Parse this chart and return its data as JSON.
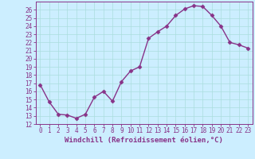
{
  "x": [
    0,
    1,
    2,
    3,
    4,
    5,
    6,
    7,
    8,
    9,
    10,
    11,
    12,
    13,
    14,
    15,
    16,
    17,
    18,
    19,
    20,
    21,
    22,
    23
  ],
  "y": [
    16.8,
    14.7,
    13.2,
    13.1,
    12.7,
    13.2,
    15.3,
    16.0,
    14.8,
    17.2,
    18.5,
    19.0,
    22.5,
    23.3,
    24.0,
    25.3,
    26.1,
    26.5,
    26.4,
    25.3,
    24.0,
    22.0,
    21.7,
    21.3
  ],
  "line_color": "#883388",
  "marker": "D",
  "marker_size": 2.5,
  "bg_color": "#cceeff",
  "grid_color": "#aadddd",
  "xlabel": "Windchill (Refroidissement éolien,°C)",
  "xlim": [
    -0.5,
    23.5
  ],
  "ylim": [
    12,
    27
  ],
  "yticks": [
    12,
    13,
    14,
    15,
    16,
    17,
    18,
    19,
    20,
    21,
    22,
    23,
    24,
    25,
    26
  ],
  "xticks": [
    0,
    1,
    2,
    3,
    4,
    5,
    6,
    7,
    8,
    9,
    10,
    11,
    12,
    13,
    14,
    15,
    16,
    17,
    18,
    19,
    20,
    21,
    22,
    23
  ],
  "tick_label_size": 5.5,
  "xlabel_size": 6.5,
  "line_width": 1.0
}
